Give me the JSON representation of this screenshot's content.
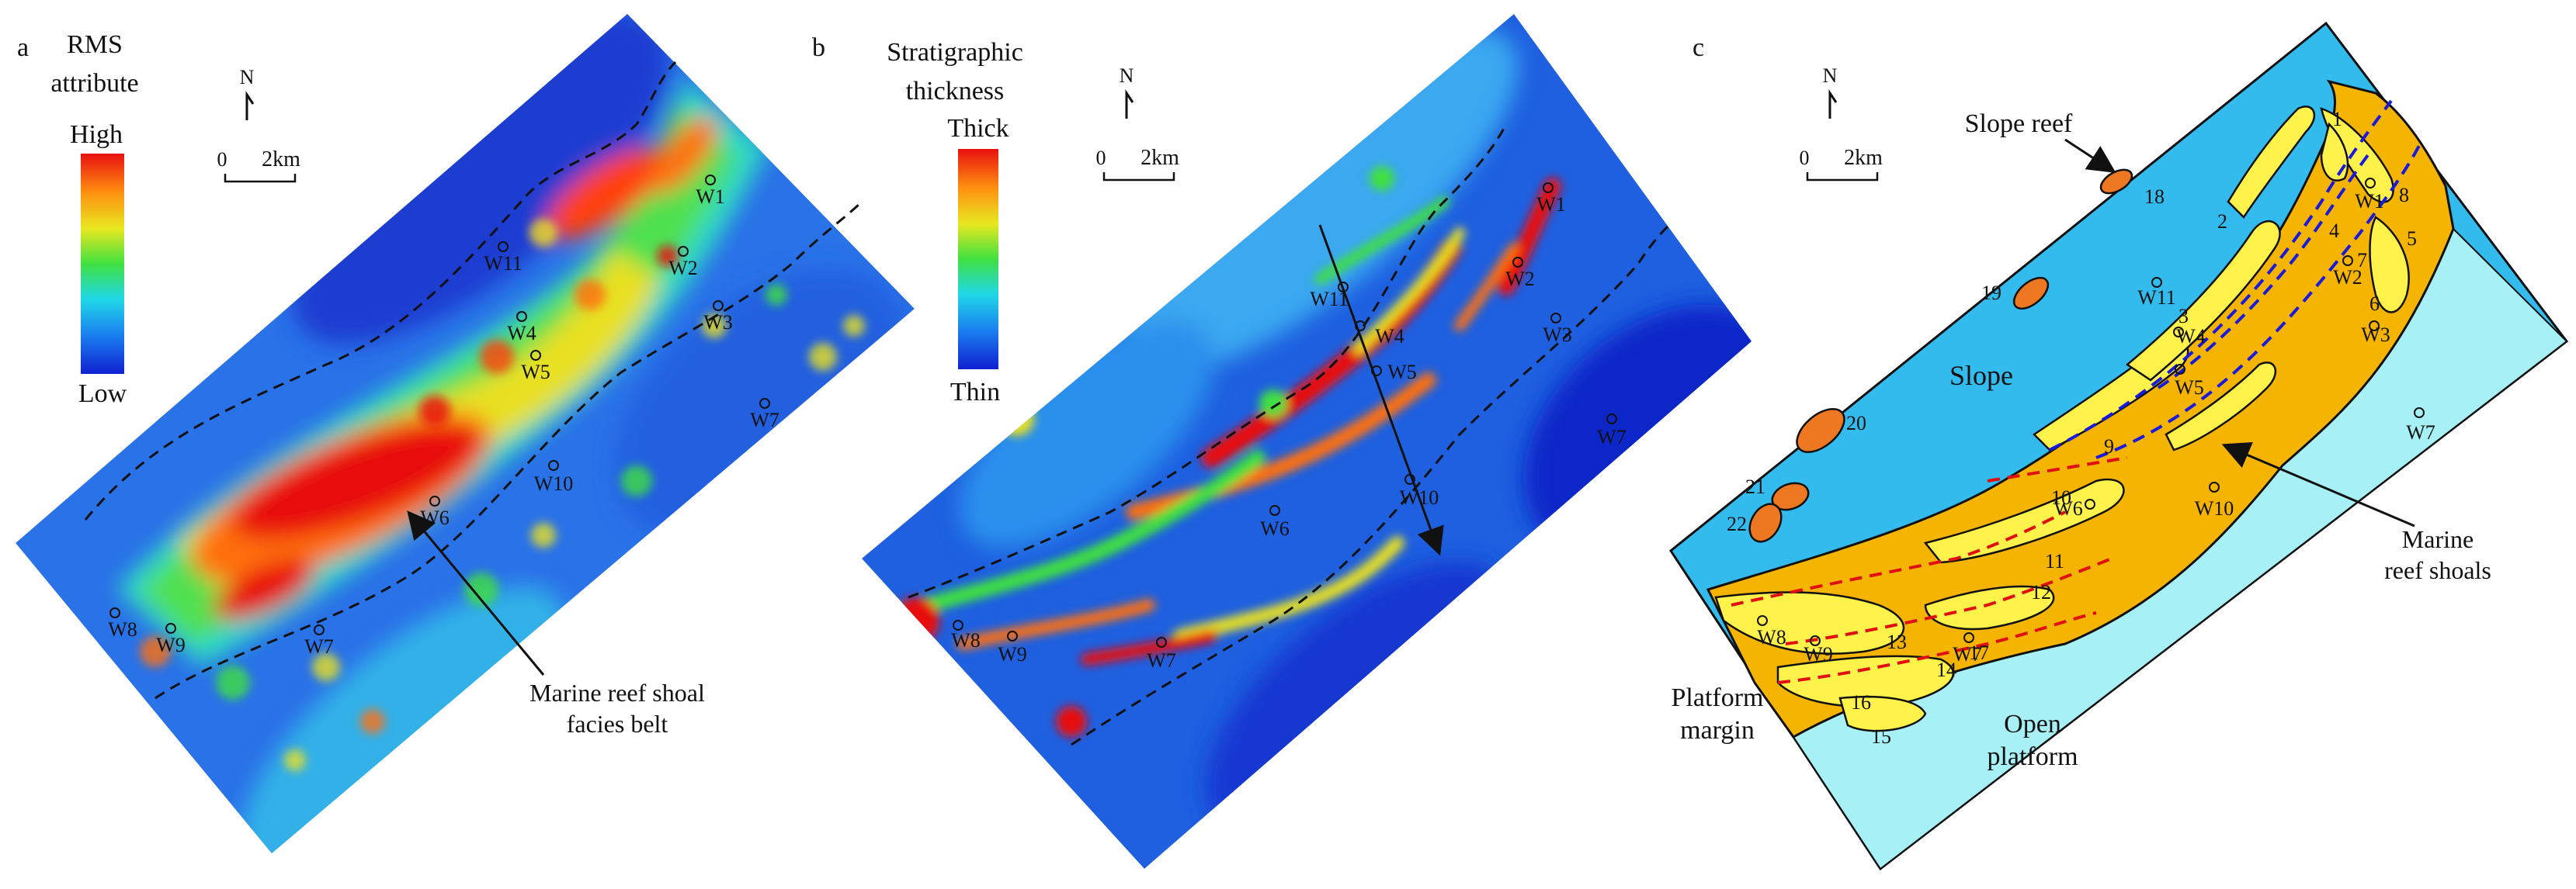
{
  "panels": {
    "a": {
      "letter": "a",
      "legend_title_1": "RMS",
      "legend_title_2": "attribute",
      "legend_high": "High",
      "legend_low": "Low",
      "annotation_1": "Marine reef shoal",
      "annotation_2": "facies belt"
    },
    "b": {
      "letter": "b",
      "legend_title_1": "Stratigraphic",
      "legend_title_2": "thickness",
      "legend_high": "Thick",
      "legend_low": "Thin"
    },
    "c": {
      "letter": "c",
      "label_slope_reef": "Slope reef",
      "label_slope": "Slope",
      "label_platform_margin_1": "Platform",
      "label_platform_margin_2": "margin",
      "label_open_platform_1": "Open",
      "label_open_platform_2": "platform",
      "label_reef_shoals_1": "Marine",
      "label_reef_shoals_2": "reef shoals",
      "unit_numbers": [
        "1",
        "2",
        "3",
        "4",
        "5",
        "6",
        "7",
        "8",
        "9",
        "10",
        "11",
        "12",
        "13",
        "14",
        "15",
        "16",
        "17",
        "18",
        "19",
        "20",
        "21",
        "22"
      ]
    }
  },
  "compass": {
    "north": "N",
    "scale_zero": "0",
    "scale_distance": "2km"
  },
  "wells": [
    "W1",
    "W2",
    "W3",
    "W4",
    "W5",
    "W6",
    "W7",
    "W8",
    "W9",
    "W10",
    "W11"
  ],
  "colors": {
    "ramp": [
      "#1020d0",
      "#1a7cf0",
      "#20d8e8",
      "#40e040",
      "#e8e820",
      "#ff8c10",
      "#e81010"
    ],
    "slope": "#33bbee",
    "open_platform": "#a6f0f6",
    "reef_shoal_dark": "#f5b400",
    "reef_shoal_light": "#fff24a",
    "slope_reef": "#ee7722",
    "dashed_blue": "#1a1adc",
    "dashed_red": "#e01010"
  }
}
